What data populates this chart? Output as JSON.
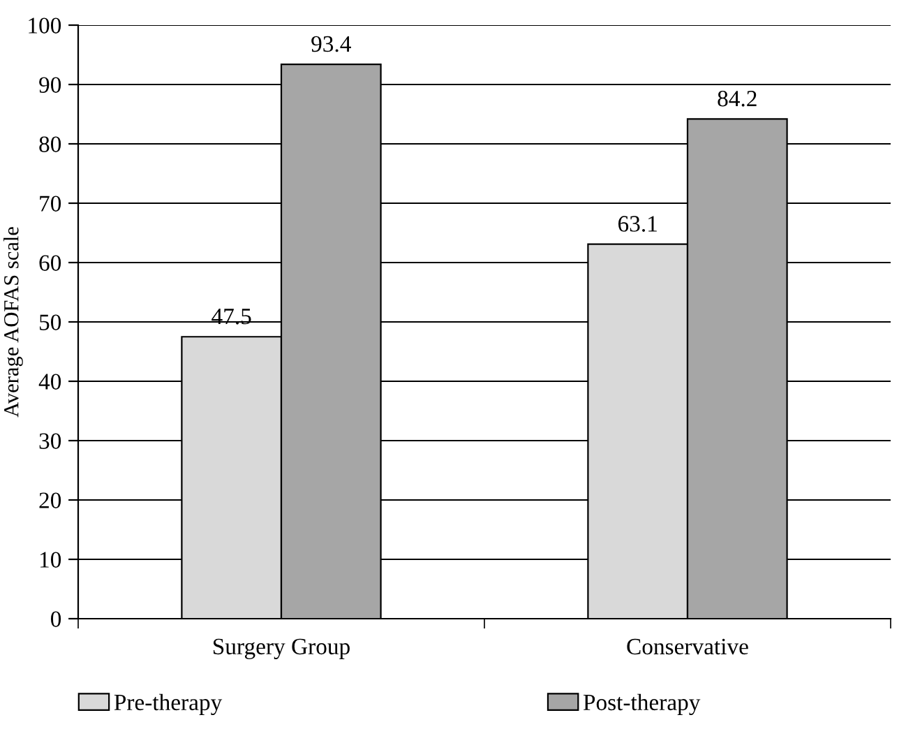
{
  "chart_data": {
    "type": "bar",
    "ylabel": "Average AOFAS scale",
    "categories": [
      "Surgery Group",
      "Conservative"
    ],
    "series": [
      {
        "name": "Pre-therapy",
        "color": "#d9d9d9",
        "values": [
          47.5,
          63.1
        ]
      },
      {
        "name": "Post-therapy",
        "color": "#a6a6a6",
        "values": [
          93.4,
          84.2
        ]
      }
    ],
    "ylim": [
      0,
      100
    ],
    "yticks": [
      0,
      10,
      20,
      30,
      40,
      50,
      60,
      70,
      80,
      90,
      100
    ],
    "grid": "y",
    "legend": "bottom",
    "data_labels": true
  }
}
